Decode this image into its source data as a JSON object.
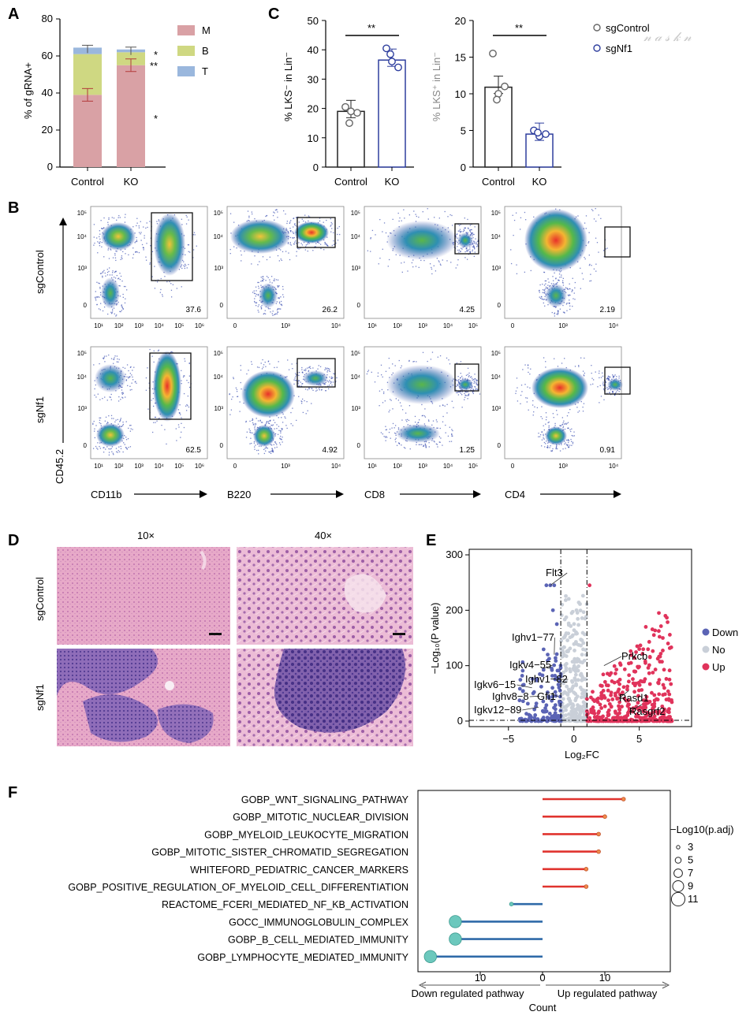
{
  "panels": {
    "A": {
      "letter": "A"
    },
    "B": {
      "letter": "B"
    },
    "C": {
      "letter": "C"
    },
    "D": {
      "letter": "D"
    },
    "E": {
      "letter": "E"
    },
    "F": {
      "letter": "F"
    }
  },
  "panelA": {
    "ylabel": "% of gRNA+",
    "yticks": [
      "0",
      "20",
      "40",
      "60",
      "80"
    ],
    "categories": [
      "Control",
      "KO"
    ],
    "legend": [
      {
        "label": "M",
        "color": "#d9a1a5"
      },
      {
        "label": "B",
        "color": "#cfd882"
      },
      {
        "label": "T",
        "color": "#9ab7dd"
      }
    ],
    "sig": [
      "*",
      "**",
      "*"
    ]
  },
  "panelC": {
    "ylabel1": "% LKS⁻ in Lin⁻",
    "ylabel2": "% LKS⁺ in Lin⁻",
    "yticks1": [
      "0",
      "10",
      "20",
      "30",
      "40",
      "50"
    ],
    "yticks2": [
      "0",
      "5",
      "10",
      "15",
      "20"
    ],
    "categories": [
      "Control",
      "KO"
    ],
    "sig1": "**",
    "sig2": "**",
    "legend": [
      {
        "label": "sgControl",
        "color": "#666666"
      },
      {
        "label": "sgNf1",
        "color": "#2e3e9e"
      }
    ]
  },
  "panelB": {
    "row_labels": [
      "sgControl",
      "sgNf1"
    ],
    "yaxis_label": "CD45.2",
    "xaxis_labels": [
      "CD11b",
      "B220",
      "CD8",
      "CD4"
    ],
    "top_values": [
      "37.6",
      "26.2",
      "4.25",
      "2.19"
    ],
    "bottom_values": [
      "62.5",
      "4.92",
      "1.25",
      "0.91"
    ],
    "ytick_labels": [
      "10⁵",
      "10⁴",
      "10³",
      "0"
    ],
    "xtick_sets": [
      [
        "10¹",
        "10²",
        "10³",
        "10⁴",
        "10⁵",
        "10⁶"
      ],
      [
        "0",
        "10³",
        "10⁴"
      ],
      [
        "10¹",
        "10²",
        "10³",
        "10⁴",
        "10⁵"
      ],
      [
        "0",
        "10³",
        "10⁴"
      ]
    ]
  },
  "panelD": {
    "col_labels": [
      "10×",
      "40×"
    ],
    "row_labels": [
      "sgControl",
      "sgNf1"
    ]
  },
  "panelE": {
    "xlabel": "Log₂FC",
    "ylabel": "−Log₁₀(P value)",
    "xticks": [
      "−5",
      "0",
      "5"
    ],
    "yticks": [
      "0",
      "100",
      "200",
      "300"
    ],
    "legend": [
      {
        "label": "Down",
        "color": "#5b64b5"
      },
      {
        "label": "No",
        "color": "#c9cfd8"
      },
      {
        "label": "Up",
        "color": "#e0335b"
      }
    ],
    "genes_left": [
      "Flt3",
      "Ighv1−77",
      "Igkv4−55",
      "Ighv1−82",
      "Igkv6−15",
      "Ighv8−8",
      "Gfi1",
      "Igkv12−89"
    ],
    "genes_right": [
      "Prkcb",
      "Rasd1",
      "Rasgrf2"
    ]
  },
  "panelF": {
    "xlabel": "Count",
    "down_label": "Down regulated pathway",
    "up_label": "Up regulated pathway",
    "xticks": [
      "10",
      "0",
      "10"
    ],
    "size_legend_title": "−Log10(p.adj)",
    "size_legend": [
      "3",
      "5",
      "7",
      "9",
      "11"
    ]
  },
  "chart_data": [
    {
      "panel": "A",
      "type": "bar",
      "categories": [
        "Control",
        "KO"
      ],
      "series": [
        {
          "name": "M",
          "values": [
            39,
            55
          ]
        },
        {
          "name": "B",
          "values": [
            22,
            7
          ]
        },
        {
          "name": "T",
          "values": [
            3.5,
            1.5
          ]
        }
      ],
      "ylabel": "% of gRNA+",
      "ylim": [
        0,
        80
      ]
    },
    {
      "panel": "C-left",
      "type": "bar",
      "categories": [
        "Control",
        "KO"
      ],
      "values": [
        19,
        36.5
      ],
      "points": [
        [
          20.5,
          18.5,
          19,
          15
        ],
        [
          40.5,
          34,
          36,
          38.5
        ]
      ],
      "ylabel": "% LKS⁻ in Lin⁻",
      "ylim": [
        0,
        50
      ]
    },
    {
      "panel": "C-right",
      "type": "bar",
      "categories": [
        "Control",
        "KO"
      ],
      "values": [
        10.9,
        4.5
      ],
      "points": [
        [
          15.5,
          11,
          10,
          9.2
        ],
        [
          5,
          4.5,
          4.2,
          4.7
        ]
      ],
      "ylabel": "% LKS⁺ in Lin⁻",
      "ylim": [
        0,
        20
      ]
    },
    {
      "panel": "E",
      "type": "scatter",
      "xlabel": "Log₂FC",
      "ylabel": "−Log₁₀(P value)",
      "xlim": [
        -8,
        9
      ],
      "ylim": [
        -10,
        310
      ],
      "labeled_points": [
        {
          "gene": "Flt3",
          "x": -1.8,
          "y": 245
        },
        {
          "gene": "Ighv1−77",
          "x": -1.5,
          "y": 120
        },
        {
          "gene": "Igkv4−55",
          "x": -2.3,
          "y": 95
        },
        {
          "gene": "Ighv1−82",
          "x": -1.4,
          "y": 75
        },
        {
          "gene": "Igkv6−15",
          "x": -3.2,
          "y": 60
        },
        {
          "gene": "Ighv8−8",
          "x": -2.6,
          "y": 45
        },
        {
          "gene": "Gfi1",
          "x": -1.8,
          "y": 50
        },
        {
          "gene": "Igkv12−89",
          "x": -2.7,
          "y": 25
        },
        {
          "gene": "Prkcb",
          "x": 2.3,
          "y": 100
        },
        {
          "gene": "Rasd1",
          "x": 4.2,
          "y": 55
        },
        {
          "gene": "Rasgrf2",
          "x": 5.2,
          "y": 30
        }
      ]
    },
    {
      "panel": "F",
      "type": "bar",
      "categories": [
        "GOBP_WNT_SIGNALING_PATHWAY",
        "GOBP_MITOTIC_NUCLEAR_DIVISION",
        "GOBP_MYELOID_LEUKOCYTE_MIGRATION",
        "GOBP_MITOTIC_SISTER_CHROMATID_SEGREGATION",
        "WHITEFORD_PEDIATRIC_CANCER_MARKERS",
        "GOBP_POSITIVE_REGULATION_OF_MYELOID_CELL_DIFFERENTIATION",
        "REACTOME_FCERI_MEDIATED_NF_KB_ACTIVATION",
        "GOCC_IMMUNOGLOBULIN_COMPLEX",
        "GOBP_B_CELL_MEDIATED_IMMUNITY",
        "GOBP_LYMPHOCYTE_MEDIATED_IMMUNITY"
      ],
      "values": [
        13,
        10,
        9,
        9,
        7,
        7,
        -5,
        -14,
        -14,
        -18
      ],
      "padj": [
        3,
        3,
        3,
        3,
        3,
        3,
        3,
        9,
        9,
        9
      ],
      "xlabel": "Count"
    }
  ]
}
